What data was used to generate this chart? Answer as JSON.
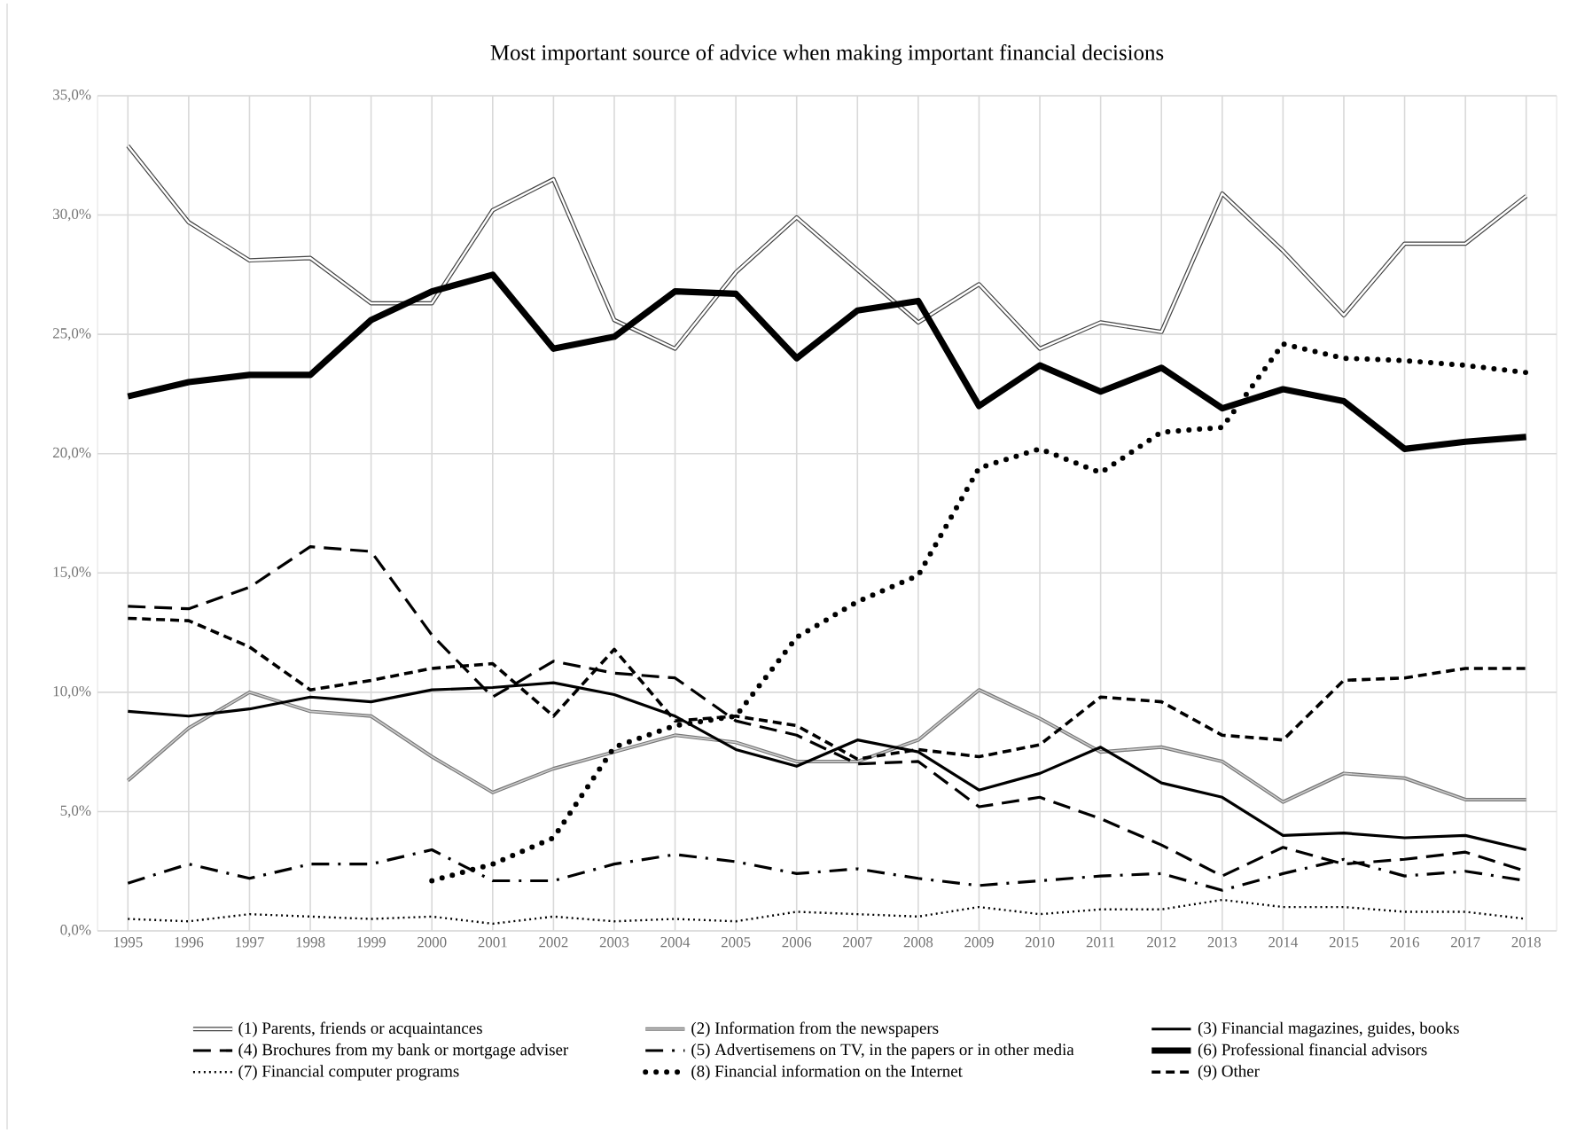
{
  "chart_data": {
    "type": "line",
    "title": "Most important source of advice when making important financial decisions",
    "categories": [
      "1995",
      "1996",
      "1997",
      "1998",
      "1999",
      "2000",
      "2001",
      "2002",
      "2003",
      "2004",
      "2005",
      "2006",
      "2007",
      "2008",
      "2009",
      "2010",
      "2011",
      "2012",
      "2013",
      "2014",
      "2015",
      "2016",
      "2017",
      "2018"
    ],
    "ylim": [
      0,
      35
    ],
    "yticks": [
      {
        "value": 0,
        "label": "0,0%"
      },
      {
        "value": 5,
        "label": "5,0%"
      },
      {
        "value": 10,
        "label": "10,0%"
      },
      {
        "value": 15,
        "label": "15,0%"
      },
      {
        "value": 20,
        "label": "20,0%"
      },
      {
        "value": 25,
        "label": "25,0%"
      },
      {
        "value": 30,
        "label": "30,0%"
      },
      {
        "value": 35,
        "label": "35,0%"
      }
    ],
    "grid": true,
    "legend": "bottom",
    "marker": "none",
    "series": [
      {
        "name": "(1) Parents, friends or acquaintances",
        "color": "#444444",
        "line_style": "solid",
        "values": [
          32.9,
          29.7,
          28.1,
          28.2,
          26.3,
          26.3,
          30.2,
          31.5,
          25.6,
          24.4,
          27.6,
          29.9,
          27.7,
          25.5,
          27.1,
          24.4,
          25.5,
          25.1,
          30.9,
          28.5,
          25.8,
          28.8,
          28.8,
          30.8
        ]
      },
      {
        "name": "(2) Information from the newspapers",
        "color": "#777777",
        "line_style": "solid",
        "values": [
          6.3,
          8.5,
          10.0,
          9.2,
          9.0,
          7.3,
          5.8,
          6.8,
          7.5,
          8.2,
          7.9,
          7.1,
          7.1,
          8.0,
          10.1,
          8.9,
          7.5,
          7.7,
          7.1,
          5.4,
          6.6,
          6.4,
          5.5,
          5.5
        ]
      },
      {
        "name": "(3) Financial magazines, guides, books",
        "color": "#000000",
        "line_style": "solid",
        "values": [
          9.2,
          9.0,
          9.3,
          9.8,
          9.6,
          10.1,
          10.2,
          10.4,
          9.9,
          9.0,
          7.6,
          6.9,
          8.0,
          7.5,
          5.9,
          6.6,
          7.7,
          6.2,
          5.6,
          4.0,
          4.1,
          3.9,
          4.0,
          3.4
        ]
      },
      {
        "name": "(4) Brochures from my bank or mortgage adviser",
        "color": "#000000",
        "line_style": "dashed",
        "values": [
          13.6,
          13.5,
          14.4,
          16.1,
          15.9,
          12.4,
          9.8,
          11.3,
          10.8,
          10.6,
          8.8,
          8.2,
          7.0,
          7.1,
          5.2,
          5.6,
          4.7,
          3.6,
          2.3,
          3.5,
          2.8,
          3.0,
          3.3,
          2.5
        ]
      },
      {
        "name": "(5) Advertisemens on TV, in the papers or in other media",
        "color": "#000000",
        "line_style": "dashed",
        "values": [
          2.0,
          2.8,
          2.2,
          2.8,
          2.8,
          3.4,
          2.1,
          2.1,
          2.8,
          3.2,
          2.9,
          2.4,
          2.6,
          2.2,
          1.9,
          2.1,
          2.3,
          2.4,
          1.7,
          2.4,
          3.0,
          2.3,
          2.5,
          2.1
        ]
      },
      {
        "name": "(6) Professional financial advisors",
        "color": "#000000",
        "line_style": "solid",
        "values": [
          22.4,
          23.0,
          23.3,
          23.3,
          25.6,
          26.8,
          27.5,
          24.4,
          24.9,
          26.8,
          26.7,
          24.0,
          26.0,
          26.4,
          22.0,
          23.7,
          22.6,
          23.6,
          21.9,
          22.7,
          22.2,
          20.2,
          20.5,
          20.7
        ]
      },
      {
        "name": "(7) Financial computer programs",
        "color": "#000000",
        "line_style": "dotted",
        "values": [
          0.5,
          0.4,
          0.7,
          0.6,
          0.5,
          0.6,
          0.3,
          0.6,
          0.4,
          0.5,
          0.4,
          0.8,
          0.7,
          0.6,
          1.0,
          0.7,
          0.9,
          0.9,
          1.3,
          1.0,
          1.0,
          0.8,
          0.8,
          0.5
        ]
      },
      {
        "name": "(8) Financial information on the Internet",
        "color": "#000000",
        "line_style": "dotted",
        "values": [
          null,
          null,
          null,
          null,
          null,
          2.1,
          2.8,
          3.9,
          7.7,
          8.6,
          9.0,
          12.3,
          13.8,
          14.9,
          19.4,
          20.2,
          19.2,
          20.9,
          21.1,
          24.6,
          24.0,
          23.9,
          23.7,
          23.4
        ]
      },
      {
        "name": "(9) Other",
        "color": "#000000",
        "line_style": "dashed",
        "values": [
          13.1,
          13.0,
          11.9,
          10.1,
          10.5,
          11.0,
          11.2,
          9.0,
          11.8,
          8.8,
          9.0,
          8.6,
          7.2,
          7.6,
          7.3,
          7.8,
          9.8,
          9.6,
          8.2,
          8.0,
          10.5,
          10.6,
          11.0,
          11.0
        ]
      }
    ]
  }
}
